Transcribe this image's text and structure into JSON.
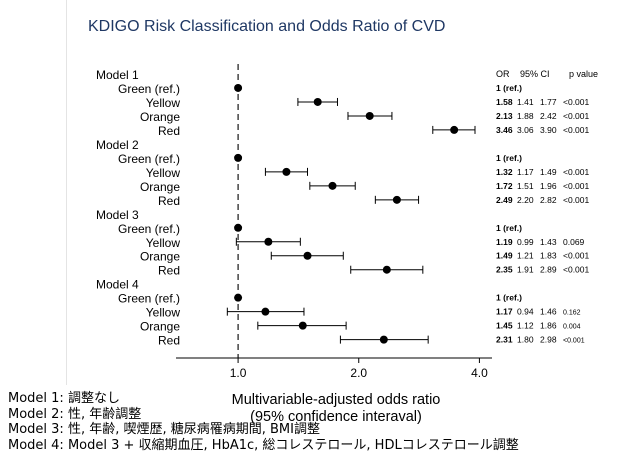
{
  "title": "KDIGO Risk Classification and Odds Ratio of CVD",
  "xlabel_line1": "Multivariable-adjusted odds ratio",
  "xlabel_line2": "(95% confidence interaval)",
  "table_headers": {
    "or": "OR",
    "ci": "95% CI",
    "p": "p value"
  },
  "notes": [
    "Model 1: 調整なし",
    "Model 2: 性, 年齢調整",
    "Model 3: 性, 年齢, 喫煙歴, 糖尿病罹病期間, BMI調整",
    "Model 4: Model 3 + 収縮期血圧, HbA1c, 総コレステロール, HDLコレステロール調整"
  ],
  "chart_data": {
    "type": "forest",
    "title": "KDIGO Risk Classification and Odds Ratio of CVD",
    "xlabel": "Multivariable-adjusted odds ratio (95% confidence interaval)",
    "x_ticks": [
      "1.0",
      "2.0",
      "4.0"
    ],
    "x_tick_values": [
      1,
      2,
      4
    ],
    "xlim": [
      0.7,
      4.3
    ],
    "scale": "log",
    "reference_line": 1.0,
    "groups": [
      {
        "name": "Model 1",
        "rows": [
          {
            "label": "Green (ref.)",
            "or": 1.0,
            "or_text": "1 (ref.)"
          },
          {
            "label": "Yellow",
            "or": 1.58,
            "lo": 1.41,
            "hi": 1.77,
            "or_text": "1.58",
            "lo_text": "1.41",
            "hi_text": "1.77",
            "p": "<0.001"
          },
          {
            "label": "Orange",
            "or": 2.13,
            "lo": 1.88,
            "hi": 2.42,
            "or_text": "2.13",
            "lo_text": "1.88",
            "hi_text": "2.42",
            "p": "<0.001"
          },
          {
            "label": "Red",
            "or": 3.46,
            "lo": 3.06,
            "hi": 3.9,
            "or_text": "3.46",
            "lo_text": "3.06",
            "hi_text": "3.90",
            "p": "<0.001"
          }
        ]
      },
      {
        "name": "Model 2",
        "rows": [
          {
            "label": "Green (ref.)",
            "or": 1.0,
            "or_text": "1 (ref.)"
          },
          {
            "label": "Yellow",
            "or": 1.32,
            "lo": 1.17,
            "hi": 1.49,
            "or_text": "1.32",
            "lo_text": "1.17",
            "hi_text": "1.49",
            "p": "<0.001"
          },
          {
            "label": "Orange",
            "or": 1.72,
            "lo": 1.51,
            "hi": 1.96,
            "or_text": "1.72",
            "lo_text": "1.51",
            "hi_text": "1.96",
            "p": "<0.001"
          },
          {
            "label": "Red",
            "or": 2.49,
            "lo": 2.2,
            "hi": 2.82,
            "or_text": "2.49",
            "lo_text": "2.20",
            "hi_text": "2.82",
            "p": "<0.001"
          }
        ]
      },
      {
        "name": "Model 3",
        "rows": [
          {
            "label": "Green (ref.)",
            "or": 1.0,
            "or_text": "1 (ref.)"
          },
          {
            "label": "Yellow",
            "or": 1.19,
            "lo": 0.99,
            "hi": 1.43,
            "or_text": "1.19",
            "lo_text": "0.99",
            "hi_text": "1.43",
            "p": "0.069"
          },
          {
            "label": "Orange",
            "or": 1.49,
            "lo": 1.21,
            "hi": 1.83,
            "or_text": "1.49",
            "lo_text": "1.21",
            "hi_text": "1.83",
            "p": "<0.001"
          },
          {
            "label": "Red",
            "or": 2.35,
            "lo": 1.91,
            "hi": 2.89,
            "or_text": "2.35",
            "lo_text": "1.91",
            "hi_text": "2.89",
            "p": "<0.001"
          }
        ]
      },
      {
        "name": "Model 4",
        "rows": [
          {
            "label": "Green (ref.)",
            "or": 1.0,
            "or_text": "1 (ref.)"
          },
          {
            "label": "Yellow",
            "or": 1.17,
            "lo": 0.94,
            "hi": 1.46,
            "or_text": "1.17",
            "lo_text": "0.94",
            "hi_text": "1.46",
            "p": "0.162"
          },
          {
            "label": "Orange",
            "or": 1.45,
            "lo": 1.12,
            "hi": 1.86,
            "or_text": "1.45",
            "lo_text": "1.12",
            "hi_text": "1.86",
            "p": "0.004"
          },
          {
            "label": "Red",
            "or": 2.31,
            "lo": 1.8,
            "hi": 2.98,
            "or_text": "2.31",
            "lo_text": "1.80",
            "hi_text": "2.98",
            "p": "<0.001"
          }
        ]
      }
    ]
  }
}
